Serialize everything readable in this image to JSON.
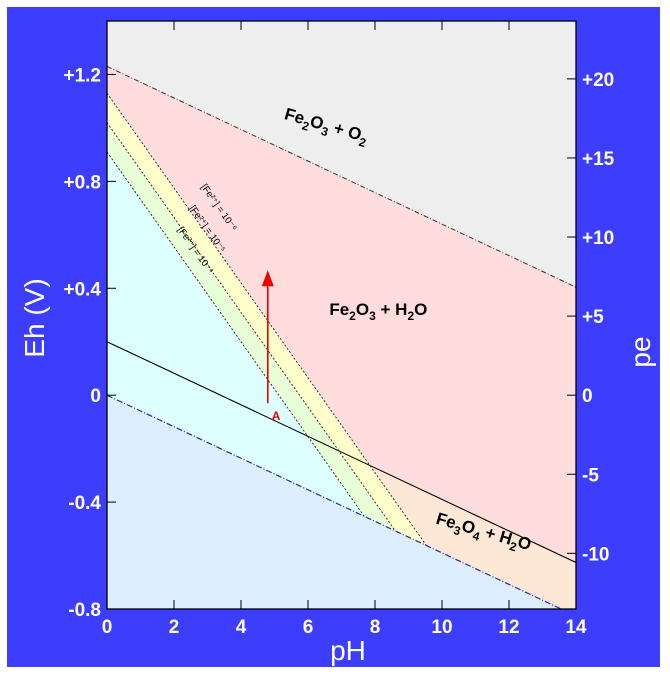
{
  "chart_data": {
    "type": "pourbaix",
    "xlabel": "pH",
    "ylabel_left": "Eh (V)",
    "ylabel_right": "pe",
    "xlim": [
      0,
      14
    ],
    "ylim_left": [
      -0.8,
      1.4
    ],
    "x_ticks": [
      "0",
      "2",
      "4",
      "6",
      "8",
      "10",
      "12",
      "14"
    ],
    "x_tick_values": [
      0,
      2,
      4,
      6,
      8,
      10,
      12,
      14
    ],
    "y_left_ticks": [
      "+1.2",
      "+0.8",
      "+0.4",
      "0",
      "-0.4",
      "-0.8"
    ],
    "y_left_tick_values": [
      1.2,
      0.8,
      0.4,
      0,
      -0.4,
      -0.8
    ],
    "y_right_ticks": [
      "+20",
      "+15",
      "+10",
      "+5",
      "0",
      "-5",
      "-10"
    ],
    "y_right_tick_values": [
      20,
      15,
      10,
      5,
      0,
      -5,
      -10
    ],
    "pe_per_volt": 16.9,
    "lines": {
      "o2_h2o": {
        "eh_at_ph0": 1.23,
        "slope": -0.059
      },
      "h2o_h2": {
        "eh_at_ph0": 0.0,
        "slope": -0.059
      },
      "magnetite_hematite": {
        "eh_at_ph0": 0.2,
        "slope": -0.059
      },
      "fe_boundaries": [
        {
          "name": "10^-6",
          "eh_at_ph0": 1.13,
          "slope": -0.1775
        },
        {
          "name": "10^-5",
          "eh_at_ph0": 1.02,
          "slope": -0.1775
        },
        {
          "name": "10^-4",
          "eh_at_ph0": 0.91,
          "slope": -0.1775
        }
      ]
    },
    "region_labels": [
      {
        "formula": [
          "Fe",
          "2",
          "O",
          "3",
          " + O",
          "2"
        ],
        "at": [
          6.5,
          0.99
        ],
        "angle": 16
      },
      {
        "formula": [
          "Fe",
          "2",
          "O",
          "3",
          " + H",
          "2",
          "O"
        ],
        "at": [
          8.1,
          0.3
        ],
        "angle": 0
      },
      {
        "formula": [
          "Fe",
          "3",
          "O",
          "4",
          " + H",
          "2",
          "O"
        ],
        "at": [
          11.2,
          -0.53
        ],
        "angle": 16
      }
    ],
    "concentration_labels": [
      {
        "text": "[Fe²⁺] = 10⁻⁶",
        "at": [
          2.8,
          0.78
        ]
      },
      {
        "text": "[Fe²⁺] = 10⁻⁵",
        "at": [
          2.45,
          0.7
        ]
      },
      {
        "text": "[Fe²⁺] = 10⁻⁴",
        "at": [
          2.1,
          0.62
        ]
      }
    ],
    "arrow": {
      "label": "A",
      "ph": 4.8,
      "eh_from": -0.03,
      "eh_to": 0.46,
      "color": "#ee0000"
    },
    "colors": {
      "frame": "#3d3dfe",
      "o2_region": "#eeeeee",
      "hematite_region": "#ffdddd",
      "yellow_band": "#ffffcc",
      "green_band": "#e8ffd8",
      "fe2_region": "#ddffff",
      "magnetite_region": "#fde8d6",
      "below_water": "#ddeeff"
    }
  }
}
